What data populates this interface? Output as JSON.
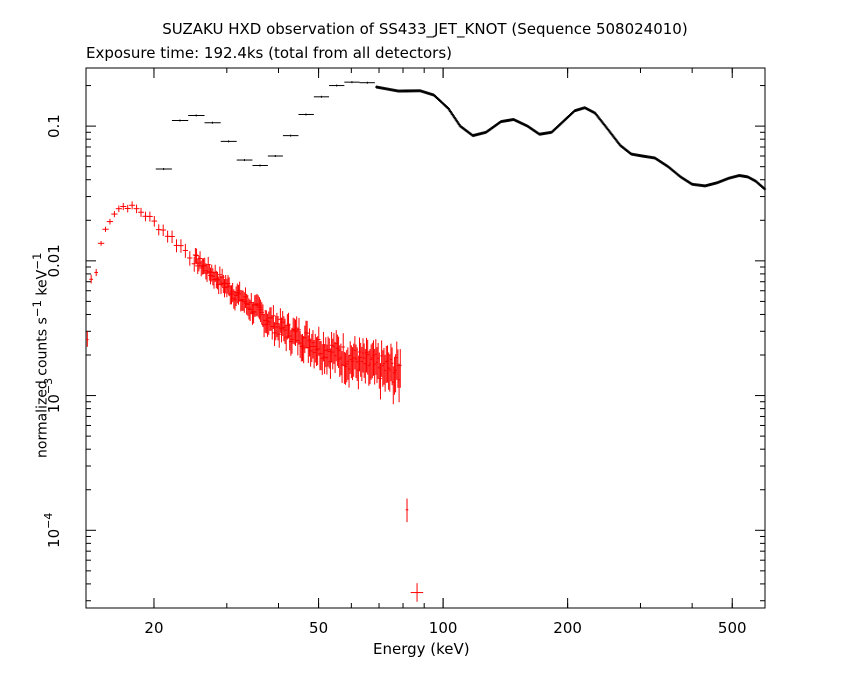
{
  "chart_data": {
    "type": "scatter",
    "title": "SUZAKU HXD observation of SS433_JET_KNOT (Sequence 508024010)",
    "subtitle": "Exposure time: 192.4ks (total from all detectors)",
    "xlabel": "Energy (keV)",
    "ylabel": {
      "base": "normalized counts s",
      "sup1": "−1",
      "mid": " keV",
      "sup2": "−1"
    },
    "x_scale": "log",
    "y_scale": "log",
    "xlim": [
      13.7,
      600
    ],
    "ylim": [
      2.65e-05,
      0.27
    ],
    "x_ticks": [
      {
        "value": 20,
        "label": "20"
      },
      {
        "value": 50,
        "label": "50"
      },
      {
        "value": 100,
        "label": "100"
      },
      {
        "value": 200,
        "label": "200"
      },
      {
        "value": 500,
        "label": "500"
      }
    ],
    "y_ticks": [
      {
        "value": 0.1,
        "label": "0.1"
      },
      {
        "value": 0.01,
        "label": "0.01"
      },
      {
        "value": 0.001,
        "label_base": "10",
        "label_sup": "−3"
      },
      {
        "value": 0.0001,
        "label_base": "10",
        "label_sup": "−4"
      }
    ],
    "grid": false,
    "legend": "none",
    "series": [
      {
        "color": "#000000",
        "points": [
          {
            "x": 21.1,
            "xlo": 20.2,
            "xhi": 22.1,
            "y": 0.048
          },
          {
            "x": 23.1,
            "xlo": 22.1,
            "xhi": 24.2,
            "y": 0.11
          },
          {
            "x": 25.3,
            "xlo": 24.2,
            "xhi": 26.5,
            "y": 0.12
          },
          {
            "x": 27.7,
            "xlo": 26.5,
            "xhi": 29.0,
            "y": 0.106
          },
          {
            "x": 30.3,
            "xlo": 29.0,
            "xhi": 31.7,
            "y": 0.077
          },
          {
            "x": 33.1,
            "xlo": 31.7,
            "xhi": 34.6,
            "y": 0.056
          },
          {
            "x": 36.1,
            "xlo": 34.6,
            "xhi": 37.7,
            "y": 0.051
          },
          {
            "x": 39.3,
            "xlo": 37.7,
            "xhi": 41.0,
            "y": 0.06
          },
          {
            "x": 42.8,
            "xlo": 41.0,
            "xhi": 44.7,
            "y": 0.085
          },
          {
            "x": 46.6,
            "xlo": 44.7,
            "xhi": 48.7,
            "y": 0.122
          },
          {
            "x": 50.8,
            "xlo": 48.7,
            "xhi": 53.0,
            "y": 0.165
          },
          {
            "x": 55.3,
            "xlo": 53.0,
            "xhi": 57.7,
            "y": 0.2
          },
          {
            "x": 60.2,
            "xlo": 57.7,
            "xhi": 62.8,
            "y": 0.212
          },
          {
            "x": 65.6,
            "xlo": 62.8,
            "xhi": 68.4,
            "y": 0.21
          }
        ],
        "profile": [
          [
            69,
            0.195
          ],
          [
            78,
            0.182
          ],
          [
            88,
            0.183
          ],
          [
            95,
            0.17
          ],
          [
            103,
            0.135
          ],
          [
            110,
            0.1
          ],
          [
            118,
            0.085
          ],
          [
            127,
            0.09
          ],
          [
            138,
            0.108
          ],
          [
            148,
            0.112
          ],
          [
            160,
            0.1
          ],
          [
            171,
            0.087
          ],
          [
            183,
            0.09
          ],
          [
            195,
            0.108
          ],
          [
            208,
            0.13
          ],
          [
            220,
            0.137
          ],
          [
            233,
            0.125
          ],
          [
            250,
            0.095
          ],
          [
            268,
            0.072
          ],
          [
            285,
            0.062
          ],
          [
            303,
            0.06
          ],
          [
            325,
            0.058
          ],
          [
            350,
            0.05
          ],
          [
            375,
            0.042
          ],
          [
            400,
            0.037
          ],
          [
            430,
            0.036
          ],
          [
            460,
            0.038
          ],
          [
            490,
            0.041
          ],
          [
            520,
            0.043
          ],
          [
            545,
            0.042
          ],
          [
            570,
            0.039
          ],
          [
            600,
            0.034
          ]
        ]
      },
      {
        "color": "#ff0000",
        "points": [
          {
            "x": 13.8,
            "xlo": 13.7,
            "xhi": 13.9,
            "y": 0.0026,
            "ylo": 0.0023,
            "yhi": 0.003
          },
          {
            "x": 14.1,
            "xlo": 13.95,
            "xhi": 14.25,
            "y": 0.0073,
            "ylo": 0.0068,
            "yhi": 0.0079
          },
          {
            "x": 14.5,
            "xlo": 14.35,
            "xhi": 14.65,
            "y": 0.0082,
            "ylo": 0.0077,
            "yhi": 0.0087
          },
          {
            "x": 81.8,
            "xlo": 81.2,
            "xhi": 82.4,
            "y": 0.000142,
            "ylo": 0.000115,
            "yhi": 0.000172
          },
          {
            "x": 86.5,
            "xlo": 83.5,
            "xhi": 89.5,
            "y": 3.45e-05,
            "ylo": 2.95e-05,
            "yhi": 4.05e-05
          }
        ],
        "profile": [
          [
            14.9,
            0.0135
          ],
          [
            15.4,
            0.0185
          ],
          [
            16.0,
            0.0225
          ],
          [
            16.6,
            0.0252
          ],
          [
            17.3,
            0.0255
          ],
          [
            18.0,
            0.0245
          ],
          [
            18.8,
            0.0228
          ],
          [
            19.6,
            0.0205
          ],
          [
            20.5,
            0.0182
          ],
          [
            21.5,
            0.016
          ],
          [
            22.6,
            0.0139
          ],
          [
            23.8,
            0.012
          ],
          [
            25.0,
            0.0104
          ],
          [
            26.5,
            0.009
          ],
          [
            28.0,
            0.0078
          ],
          [
            29.7,
            0.0067
          ],
          [
            31.5,
            0.0057
          ],
          [
            33.5,
            0.0049
          ],
          [
            35.7,
            0.0042
          ],
          [
            38.0,
            0.0036
          ],
          [
            40.5,
            0.0032
          ],
          [
            43.5,
            0.0029
          ],
          [
            47.0,
            0.0026
          ],
          [
            51.0,
            0.0023
          ],
          [
            55.0,
            0.0021
          ],
          [
            60.0,
            0.0019
          ],
          [
            65.0,
            0.00175
          ],
          [
            70.0,
            0.00165
          ],
          [
            75.0,
            0.00158
          ],
          [
            79.0,
            0.00155
          ]
        ]
      }
    ]
  }
}
